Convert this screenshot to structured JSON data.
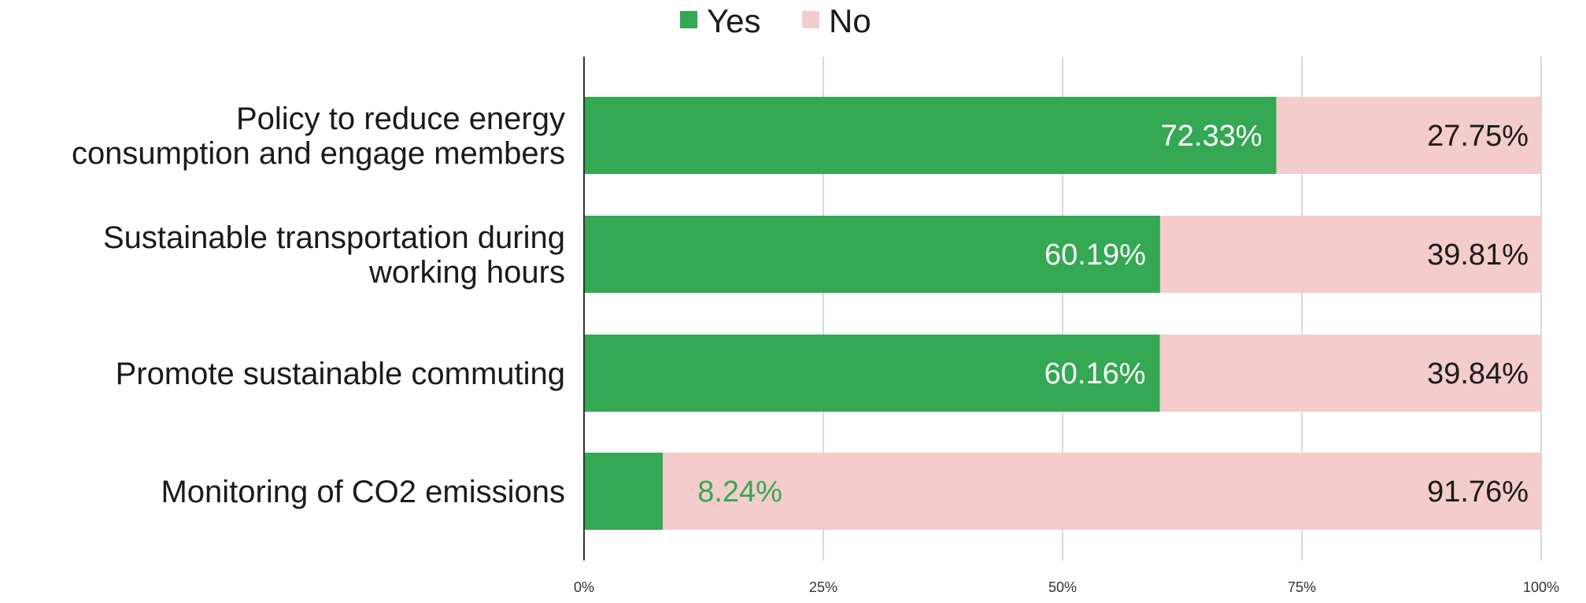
{
  "chart_data": {
    "type": "bar",
    "orientation": "horizontal",
    "stacked": true,
    "categories": [
      [
        "Policy to reduce energy",
        "consumption and engage members"
      ],
      [
        "Sustainable transportation during",
        "working hours"
      ],
      [
        "Promote sustainable commuting"
      ],
      [
        "Monitoring of CO2 emissions"
      ]
    ],
    "series": [
      {
        "name": "Yes",
        "color": "#34a853",
        "values": [
          72.33,
          60.19,
          60.16,
          8.24
        ],
        "labels": [
          "72.33%",
          "60.19%",
          "60.16%",
          "8.24%"
        ]
      },
      {
        "name": "No",
        "color": "#f4cccc",
        "values": [
          27.75,
          39.81,
          39.84,
          91.76
        ],
        "labels": [
          "27.75%",
          "39.81%",
          "39.84%",
          "91.76%"
        ]
      }
    ],
    "xlim": [
      0,
      100
    ],
    "xticks": [
      "0%",
      "25%",
      "50%",
      "75%",
      "100%"
    ],
    "grid": true,
    "legend_position": "top-center",
    "xlabel": "",
    "ylabel": ""
  }
}
